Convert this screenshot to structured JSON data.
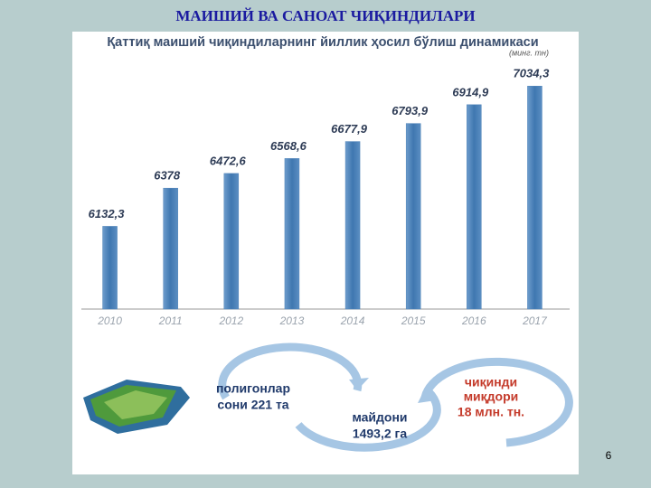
{
  "slide": {
    "title": "МАИШИЙ ВА САНОАТ ЧИҚИНДИЛАРИ",
    "page_number": "6"
  },
  "chart_data": {
    "type": "bar",
    "title": "Қаттиқ маиший чиқиндиларнинг йиллик ҳосил бўлиш динамикаси",
    "unit": "(минг. тн)",
    "categories": [
      "2010",
      "2011",
      "2012",
      "2013",
      "2014",
      "2015",
      "2016",
      "2017"
    ],
    "values": [
      6132.3,
      6378,
      6472.6,
      6568.6,
      6677.9,
      6793.9,
      6914.9,
      7034.3
    ],
    "value_labels": [
      "6132,3",
      "6378",
      "6472,6",
      "6568,6",
      "6677,9",
      "6793,9",
      "6914,9",
      "7034,3"
    ],
    "color": "#4d82b8",
    "ylim": [
      5600,
      7100
    ]
  },
  "infographic": {
    "items": [
      {
        "lines": [
          "полигонлар",
          "сони 221 та"
        ]
      },
      {
        "lines": [
          "майдони",
          "1493,2 га"
        ]
      },
      {
        "lines": [
          "чиқинди",
          "миқдори",
          "18 млн. тн."
        ]
      }
    ]
  }
}
